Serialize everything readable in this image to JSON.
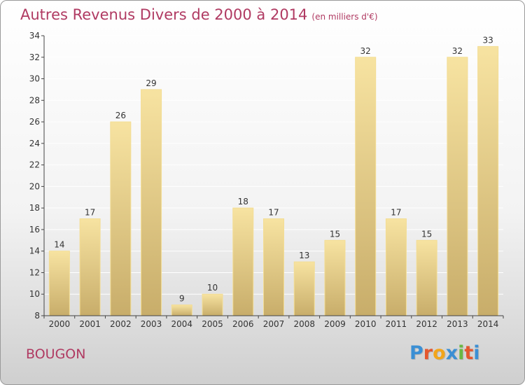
{
  "title": "Autres Revenus Divers de 2000 à 2014",
  "unit": "(en milliers d'€)",
  "place": "BOUGON",
  "logo_text": "Proxiti",
  "colors": {
    "title": "#b03a62",
    "bar_top": "#f7e3a1",
    "bar_bottom": "#c8ad6a",
    "grid": "#ffffff",
    "axis": "#444444",
    "label": "#333333"
  },
  "logo_colors": [
    "#3b8fd4",
    "#e4572e",
    "#f2a51a",
    "#3b8fd4",
    "#6ab843",
    "#e4572e",
    "#3b8fd4"
  ],
  "chart_data": {
    "type": "bar",
    "categories": [
      "2000",
      "2001",
      "2002",
      "2003",
      "2004",
      "2005",
      "2006",
      "2007",
      "2008",
      "2009",
      "2010",
      "2011",
      "2012",
      "2013",
      "2014"
    ],
    "values": [
      14,
      17,
      26,
      29,
      9,
      10,
      18,
      17,
      13,
      15,
      32,
      17,
      15,
      32,
      33
    ],
    "ylim": [
      8,
      34
    ],
    "yticks": [
      8,
      10,
      12,
      14,
      16,
      18,
      20,
      22,
      24,
      26,
      28,
      30,
      32,
      34
    ],
    "grid": true,
    "legend": "none"
  }
}
